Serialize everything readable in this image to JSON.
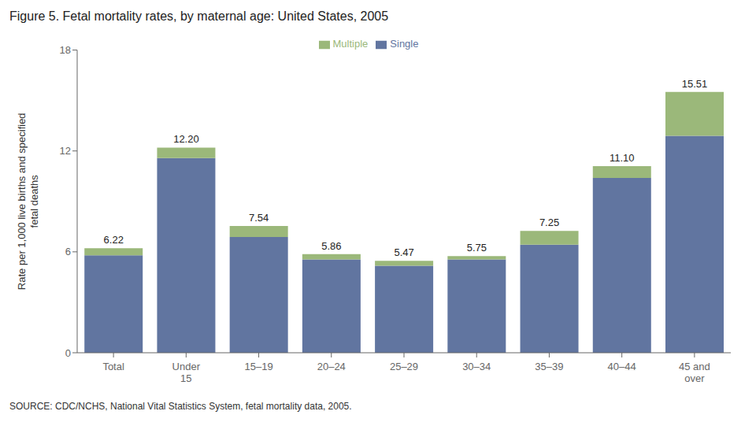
{
  "chart_data": {
    "type": "bar",
    "stacked": true,
    "title": "Figure 5.  Fetal mortality rates, by maternal age: United States, 2005",
    "ylabel": "Rate per 1,000 live births and specified\nfetal deaths",
    "source": "SOURCE: CDC/NCHS, National Vital Statistics System, fetal mortality data, 2005.",
    "categories": [
      "Total",
      "Under\n15",
      "15–19",
      "20–24",
      "25–29",
      "30–34",
      "35–39",
      "40–44",
      "45 and\nover"
    ],
    "series": [
      {
        "name": "Single",
        "color": "#6175a0",
        "values": [
          5.8,
          11.58,
          6.88,
          5.55,
          5.17,
          5.55,
          6.43,
          10.4,
          12.9
        ]
      },
      {
        "name": "Multiple",
        "color": "#9bb87a",
        "values": [
          0.42,
          0.62,
          0.66,
          0.31,
          0.3,
          0.2,
          0.82,
          0.7,
          2.61
        ]
      }
    ],
    "totals": [
      6.22,
      12.2,
      7.54,
      5.86,
      5.47,
      5.75,
      7.25,
      11.1,
      15.51
    ],
    "total_labels": [
      "6.22",
      "12.20",
      "7.54",
      "5.86",
      "5.47",
      "5.75",
      "7.25",
      "11.10",
      "15.51"
    ],
    "ylim": [
      0,
      18
    ],
    "yticks": [
      0,
      6,
      12,
      18
    ],
    "grid": false,
    "legend": "top"
  }
}
